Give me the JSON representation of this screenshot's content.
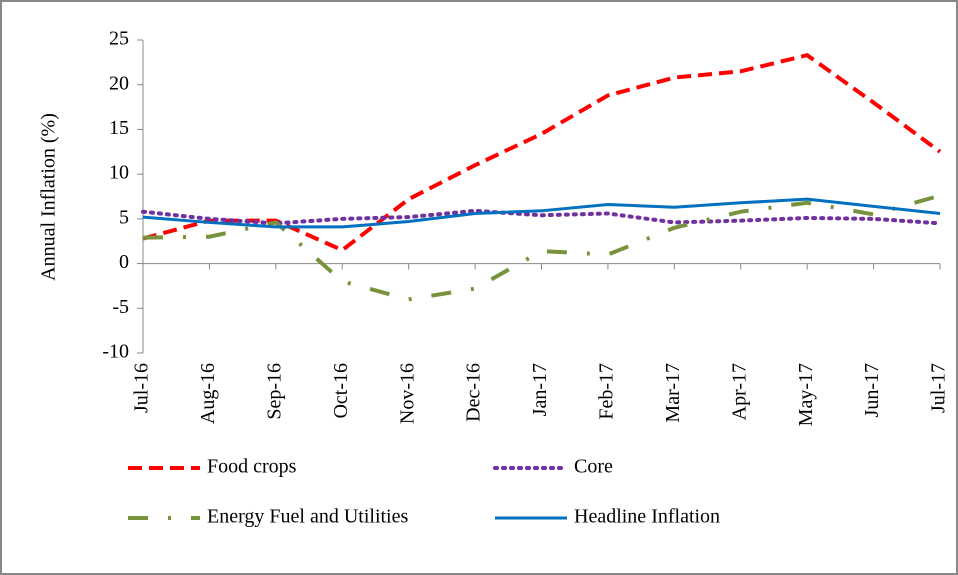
{
  "chart_data": {
    "type": "line",
    "y_label": "Annual Inflation  (%)",
    "categories": [
      "Jul-16",
      "Aug-16",
      "Sep-16",
      "Oct-16",
      "Nov-16",
      "Dec-16",
      "Jan-17",
      "Feb-17",
      "Mar-17",
      "Apr-17",
      "May-17",
      "Jun-17",
      "Jul-17"
    ],
    "series": [
      {
        "name": "Food crops",
        "color": "#ff0000",
        "style": "dashed",
        "values": [
          2.8,
          4.8,
          4.8,
          1.5,
          7.2,
          11,
          14.5,
          18.8,
          20.8,
          21.5,
          23.3,
          18,
          12.5
        ]
      },
      {
        "name": "Core",
        "color": "#7030a0",
        "style": "dotted",
        "values": [
          5.8,
          5.0,
          4.5,
          5.0,
          5.2,
          5.9,
          5.4,
          5.6,
          4.6,
          4.8,
          5.1,
          5.0,
          4.5
        ]
      },
      {
        "name": "Energy Fuel and Utilities",
        "color": "#77933c",
        "style": "dashdot",
        "values": [
          2.9,
          3.0,
          4.6,
          -2.0,
          -4.0,
          -2.8,
          1.4,
          1.0,
          4.0,
          5.8,
          6.8,
          5.5,
          7.6
        ]
      },
      {
        "name": "Headline Inflation",
        "color": "#0070c0",
        "style": "solid",
        "values": [
          5.2,
          4.6,
          4.1,
          4.1,
          4.7,
          5.6,
          5.9,
          6.6,
          6.3,
          6.8,
          7.2,
          6.4,
          5.6
        ]
      }
    ],
    "ylim": [
      -10,
      25
    ],
    "yticks": [
      -10,
      -5,
      0,
      5,
      10,
      15,
      20,
      25
    ],
    "grid": false
  }
}
